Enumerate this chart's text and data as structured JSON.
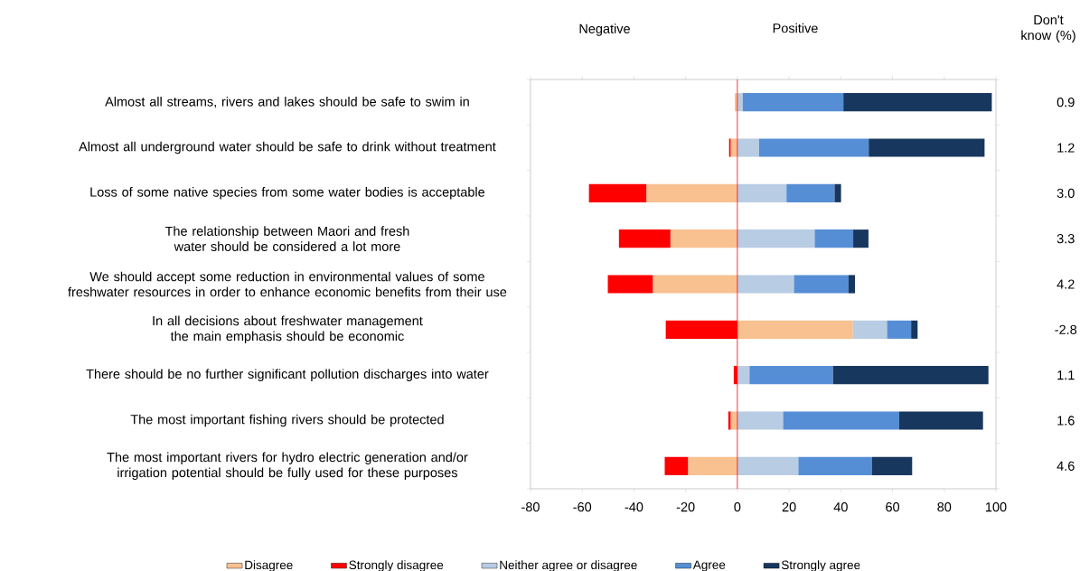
{
  "chart_data": {
    "type": "bar",
    "orientation": "horizontal",
    "stacked": true,
    "categories": [
      "Almost all streams, rivers and lakes should be safe to swim in",
      "Almost all underground water should be safe to drink without treatment",
      "Loss of some native species from some water bodies is acceptable",
      "The relationship between Maori and fresh water should be considered a lot more",
      "We should accept some reduction in environmental values of some freshwater resources in order to enhance economic benefits from their use",
      "In all decisions about freshwater management the main emphasis should be economic",
      "There should be no further significant pollution discharges into water",
      "The most important fishing rivers should be protected",
      "The most important rivers for hydro electric generation and/or irrigation potential should be fully used for these purposes"
    ],
    "series": [
      {
        "name": "Disagree",
        "color": "#f9c090",
        "values": [
          -1.0,
          -2.6,
          -35.2,
          -25.9,
          -32.7,
          44.7,
          null,
          -2.6,
          -19.1
        ]
      },
      {
        "name": "Strongly disagree",
        "color": "#ff0000",
        "values": [
          null,
          -0.6,
          -22.2,
          -19.9,
          -17.4,
          -27.7,
          -1.4,
          -0.9,
          -9.0
        ]
      },
      {
        "name": "Neither agree or disagree",
        "color": "#b8cce4",
        "values": [
          2.1,
          8.4,
          19.0,
          29.9,
          21.9,
          13.2,
          4.7,
          17.7,
          23.6
        ]
      },
      {
        "name": "Agree",
        "color": "#558ed5",
        "values": [
          38.9,
          42.4,
          18.6,
          14.9,
          21.1,
          9.3,
          32.3,
          44.9,
          28.4
        ]
      },
      {
        "name": "Strongly agree",
        "color": "#17375e",
        "values": [
          57.4,
          44.8,
          2.5,
          5.9,
          2.5,
          2.5,
          60.1,
          32.4,
          15.6
        ]
      }
    ],
    "xlim": [
      -80,
      100
    ],
    "xticks": [
      -80,
      -60,
      -40,
      -20,
      0,
      20,
      40,
      60,
      80,
      100
    ],
    "ref_lines": [
      {
        "axis": "x",
        "value": 0,
        "color": "#ff0000"
      }
    ],
    "legend": "bottom",
    "annotations": [
      "Negative",
      "Positive",
      "Don't know (%)",
      "0.9",
      "1.2",
      "3.0",
      "3.3",
      "4.2",
      "-2.8",
      "1.1",
      "1.6",
      "4.6"
    ]
  }
}
